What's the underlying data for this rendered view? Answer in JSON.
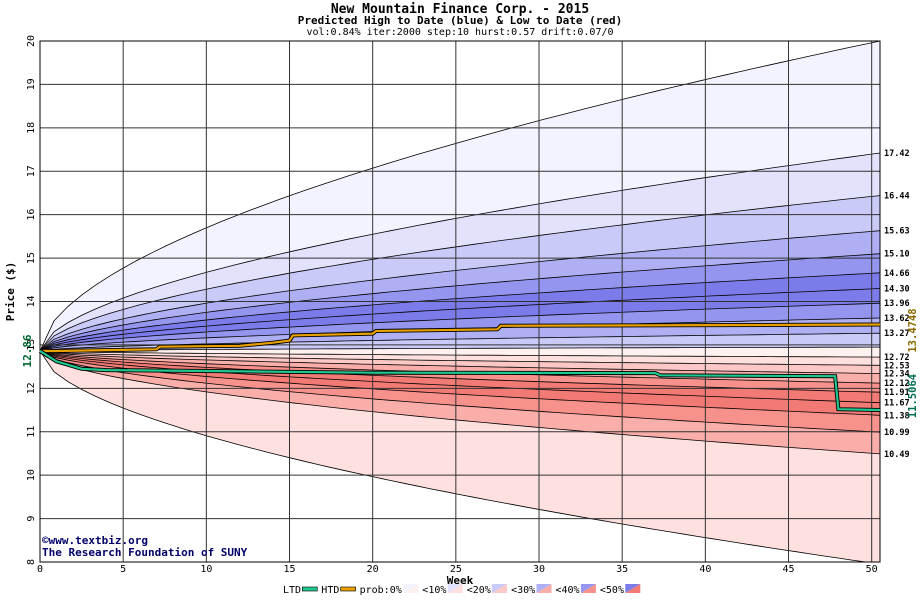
{
  "header": {
    "title": "New Mountain Finance Corp. - 2015",
    "subtitle": "Predicted High to Date (blue) &  Low to Date (red)",
    "params": "vol:0.84% iter:2000 step:10 hurst:0.57 drift:0.07/0"
  },
  "credits": {
    "line1": "©www.textbiz.org",
    "line2": "The Research Foundation of SUNY"
  },
  "colors": {
    "grid": "#333333",
    "htd": "#e8a000",
    "ltd": "#20c890",
    "start_label": "#006633",
    "htd_label": "#8a6a00",
    "ltd_label": "#006f55",
    "blue_bands": [
      "#f3f3ff",
      "#e2e2fc",
      "#cacaf8",
      "#afb0f3",
      "#9495ee",
      "#7b7ce9"
    ],
    "red_bands": [
      "#fff1f0",
      "#fee0de",
      "#fcc8c5",
      "#f9aeaa",
      "#f6918c",
      "#f27a74"
    ]
  },
  "chart_data": {
    "type": "area",
    "title": "New Mountain Finance Corp. - 2015",
    "subtitle": "Predicted High to Date (blue) &  Low to Date (red)",
    "xlabel": "Week",
    "ylabel": "Price ($)",
    "xlim": [
      0,
      50.5
    ],
    "ylim": [
      8,
      20
    ],
    "xticks": [
      0,
      5,
      10,
      15,
      20,
      25,
      30,
      35,
      40,
      45,
      50
    ],
    "yticks": [
      8,
      9,
      10,
      11,
      12,
      13,
      14,
      15,
      16,
      17,
      18,
      19,
      20
    ],
    "grid": true,
    "start_price": 12.86,
    "start_label": "12.86",
    "high_bands": [
      {
        "end": 20.0,
        "label": "",
        "fill": 0
      },
      {
        "end": 17.42,
        "label": "17.42",
        "fill": 1
      },
      {
        "end": 16.44,
        "label": "16.44",
        "fill": 2
      },
      {
        "end": 15.63,
        "label": "15.63",
        "fill": 3
      },
      {
        "end": 15.1,
        "label": "15.10",
        "fill": 4
      },
      {
        "end": 14.66,
        "label": "14.66",
        "fill": 5
      },
      {
        "end": 14.3,
        "label": "14.30",
        "fill": 5
      },
      {
        "end": 13.96,
        "label": "13.96",
        "fill": 4
      },
      {
        "end": 13.62,
        "label": "13.62",
        "fill": 3
      },
      {
        "end": 13.27,
        "label": "13.27",
        "fill": 2
      }
    ],
    "median_line": 12.95,
    "low_bands": [
      {
        "end": 12.72,
        "label": "12.72",
        "fill": 0
      },
      {
        "end": 12.53,
        "label": "12.53",
        "fill": 1
      },
      {
        "end": 12.34,
        "label": "12.34",
        "fill": 2
      },
      {
        "end": 12.12,
        "label": "12.12",
        "fill": 3
      },
      {
        "end": 11.91,
        "label": "11.91",
        "fill": 4
      },
      {
        "end": 11.67,
        "label": "11.67",
        "fill": 5
      },
      {
        "end": 11.38,
        "label": "11.38",
        "fill": 5
      },
      {
        "end": 10.99,
        "label": "10.99",
        "fill": 4
      },
      {
        "end": 10.49,
        "label": "10.49",
        "fill": 3
      },
      {
        "end": 7.95,
        "label": "",
        "fill": 1
      }
    ],
    "htd_series": {
      "name": "HTD",
      "points": [
        [
          0,
          12.86
        ],
        [
          1,
          12.86
        ],
        [
          7,
          12.9
        ],
        [
          7.2,
          12.96
        ],
        [
          12,
          12.98
        ],
        [
          14,
          13.05
        ],
        [
          15,
          13.1
        ],
        [
          15.2,
          13.22
        ],
        [
          20,
          13.26
        ],
        [
          20.2,
          13.32
        ],
        [
          27.5,
          13.36
        ],
        [
          27.7,
          13.44
        ],
        [
          45,
          13.46
        ],
        [
          50.5,
          13.47
        ]
      ],
      "end_label": "13.4748"
    },
    "ltd_series": {
      "name": "LTD",
      "points": [
        [
          0,
          12.86
        ],
        [
          1,
          12.62
        ],
        [
          2.5,
          12.45
        ],
        [
          4,
          12.42
        ],
        [
          10,
          12.4
        ],
        [
          20,
          12.36
        ],
        [
          37,
          12.35
        ],
        [
          37.3,
          12.3
        ],
        [
          47.8,
          12.28
        ],
        [
          48,
          11.52
        ],
        [
          50.5,
          11.5
        ]
      ],
      "end_label": "11.5064"
    },
    "legend": {
      "placement": "bottom",
      "items": [
        {
          "label": "LTD",
          "kind": "line",
          "color": "ltd"
        },
        {
          "label": "HTD",
          "kind": "line",
          "color": "htd"
        },
        {
          "label": "prob:0%",
          "kind": "split",
          "band": 0
        },
        {
          "label": "<10%",
          "kind": "split",
          "band": 1
        },
        {
          "label": "<20%",
          "kind": "split",
          "band": 2
        },
        {
          "label": "<30%",
          "kind": "split",
          "band": 3
        },
        {
          "label": "<40%",
          "kind": "split",
          "band": 4
        },
        {
          "label": "<50%",
          "kind": "split",
          "band": 5
        }
      ]
    }
  }
}
